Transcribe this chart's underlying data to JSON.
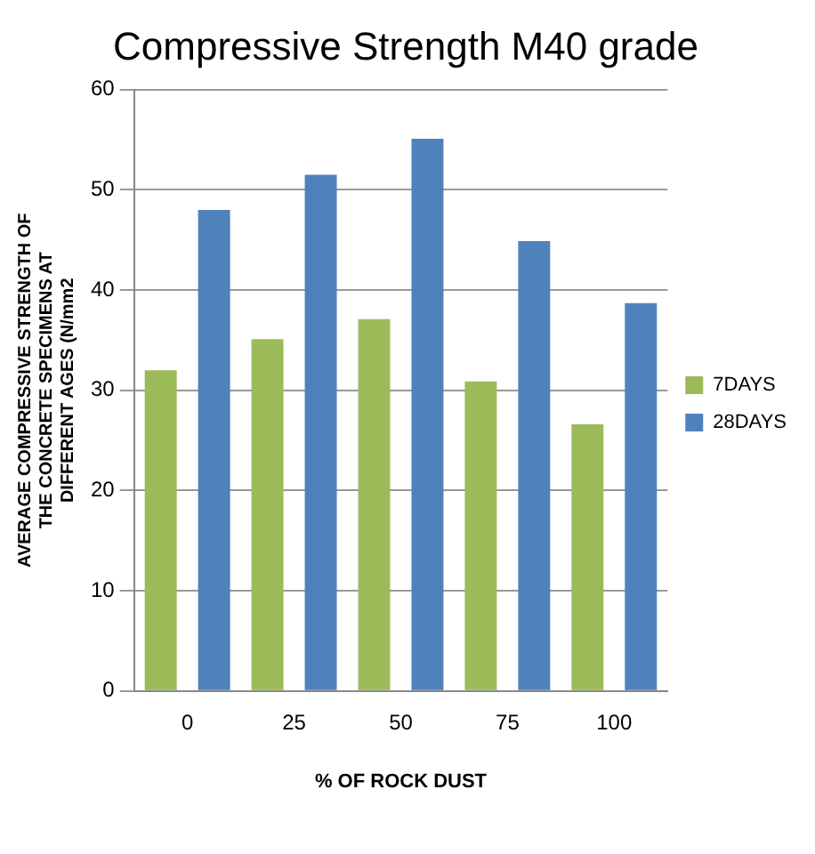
{
  "chart_data": {
    "type": "bar",
    "title": "Compressive Strength M40 grade",
    "xlabel": "% OF ROCK DUST",
    "ylabel": "AVERAGE COMPRESSIVE STRENGTH OF\nTHE CONCRETE SPECIMENS AT\nDIFFERENT AGES (N/mm2",
    "categories": [
      "0",
      "25",
      "50",
      "75",
      "100"
    ],
    "series": [
      {
        "name": "7DAYS",
        "color": "#9bbb59",
        "values": [
          32.0,
          35.1,
          37.1,
          30.9,
          26.6
        ]
      },
      {
        "name": "28DAYS",
        "color": "#4f81bd",
        "values": [
          48.0,
          51.5,
          55.1,
          44.9,
          38.7
        ]
      }
    ],
    "ylim": [
      0,
      60
    ],
    "yticks": [
      0,
      10,
      20,
      30,
      40,
      50,
      60
    ],
    "grid": "y",
    "legend": "right"
  }
}
